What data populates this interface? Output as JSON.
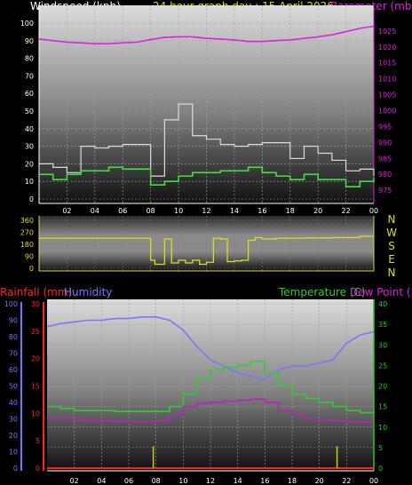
{
  "header": {
    "left_title": "Windspeed (kph)",
    "center_title": "24 hour graph day : 15 April 2026",
    "right_title": "Barometer (mb)"
  },
  "colors": {
    "background": "#000000",
    "wind_speed": "#44dd44",
    "wind_gust": "#dddddd",
    "barometer": "#dd22dd",
    "wind_dir": "#dddd22",
    "compass": "#dddd22",
    "rainfall": "#ff2222",
    "humidity": "#7777ff",
    "temperature": "#33cc33",
    "dew_point": "#bb22bb",
    "rain_bar": "#cccc00",
    "title_yellow": "#dddd00",
    "white_axis": "#ffffff",
    "green_axis": "#22cc22"
  },
  "x_axis": {
    "ticks": [
      "02",
      "04",
      "06",
      "08",
      "10",
      "12",
      "14",
      "16",
      "18",
      "20",
      "22",
      "00"
    ]
  },
  "compass_labels": [
    "N",
    "W",
    "S",
    "E",
    "N"
  ],
  "chart_data": [
    {
      "type": "line",
      "name": "wind-barometer",
      "title": "24 hour graph day : 15 April 2026",
      "ylabel": "Windspeed (kph)",
      "y2label": "Barometer (mb)",
      "ylim": [
        0,
        100
      ],
      "y2lim": [
        975,
        1030
      ],
      "yticks": [
        "0",
        "10",
        "20",
        "30",
        "40",
        "50",
        "60",
        "70",
        "80",
        "90",
        "100"
      ],
      "y2ticks": [
        "975",
        "980",
        "985",
        "990",
        "995",
        "1000",
        "1005",
        "1010",
        "1015",
        "1020",
        "1025"
      ],
      "x": [
        0,
        1,
        2,
        3,
        4,
        5,
        6,
        7,
        8,
        9,
        10,
        11,
        12,
        13,
        14,
        15,
        16,
        17,
        18,
        19,
        20,
        21,
        22,
        23,
        24
      ],
      "series": [
        {
          "key": "gust",
          "values": [
            20,
            18,
            15,
            30,
            29,
            30,
            31,
            31,
            13,
            45,
            54,
            36,
            34,
            31,
            30,
            31,
            32,
            32,
            23,
            30,
            26,
            22,
            16,
            17,
            13
          ]
        },
        {
          "key": "speed",
          "values": [
            14,
            11,
            14,
            16,
            16,
            18,
            17,
            17,
            8,
            10,
            13,
            15,
            15,
            16,
            16,
            18,
            15,
            13,
            11,
            14,
            11,
            11,
            7,
            10,
            12
          ]
        },
        {
          "key": "barometer",
          "values": [
            1022.5,
            1022,
            1021.5,
            1021.3,
            1021,
            1021,
            1021.3,
            1021.5,
            1022.3,
            1023,
            1023.2,
            1023.2,
            1022.7,
            1022.5,
            1022.2,
            1021.7,
            1021.7,
            1022,
            1022.2,
            1022.7,
            1023.2,
            1023.8,
            1024.8,
            1025.8,
            1026.5
          ]
        }
      ]
    },
    {
      "type": "line",
      "name": "wind-direction",
      "ylim": [
        0,
        360
      ],
      "yticks": [
        "0",
        "90",
        "180",
        "270",
        "360"
      ],
      "x": [
        0,
        1,
        2,
        3,
        4,
        5,
        6,
        7,
        7.9,
        8,
        8.3,
        9,
        9.5,
        10,
        10.5,
        11,
        11.5,
        12,
        12.5,
        13,
        13.5,
        14,
        14.5,
        15,
        15.5,
        16,
        17,
        18,
        19,
        20,
        21,
        22,
        23,
        24
      ],
      "values": [
        225,
        225,
        225,
        225,
        225,
        225,
        225,
        225,
        225,
        60,
        30,
        220,
        40,
        60,
        40,
        60,
        30,
        45,
        225,
        220,
        50,
        55,
        60,
        210,
        230,
        220,
        225,
        225,
        228,
        228,
        230,
        230,
        240,
        240
      ]
    },
    {
      "type": "line",
      "name": "rain-humidity-temp",
      "left_label_1": "Rainfall (mm)",
      "left_label_2": "Humidity",
      "right_label_1": "Temperature (C)",
      "right_label_2": "Dew Point (°",
      "humidity_ylim": [
        0,
        100
      ],
      "humidity_ticks": [
        "0",
        "10",
        "20",
        "30",
        "40",
        "50",
        "60",
        "70",
        "80",
        "90",
        "100"
      ],
      "rain_ylim": [
        0,
        30
      ],
      "rain_ticks": [
        "0",
        "5",
        "10",
        "15",
        "20",
        "25",
        "30"
      ],
      "temp_ylim": [
        0,
        40
      ],
      "temp_ticks": [
        "0",
        "5",
        "10",
        "15",
        "20",
        "25",
        "30",
        "35",
        "40"
      ],
      "x": [
        0,
        1,
        2,
        3,
        4,
        5,
        6,
        7,
        8,
        9,
        10,
        11,
        12,
        13,
        14,
        15,
        16,
        17,
        18,
        19,
        20,
        21,
        22,
        23,
        24
      ],
      "series": [
        {
          "key": "humidity",
          "values": [
            86,
            88,
            89,
            90,
            90,
            91,
            91,
            92,
            92,
            90,
            84,
            74,
            66,
            62,
            58,
            56,
            54,
            60,
            62,
            62,
            64,
            66,
            76,
            81,
            83
          ]
        },
        {
          "key": "temperature",
          "values": [
            15,
            14.5,
            14,
            14,
            14,
            13.8,
            13.8,
            13.8,
            13.8,
            15,
            18,
            22,
            24,
            24.5,
            25,
            26,
            23,
            20,
            18,
            17,
            16,
            15,
            14,
            13.5,
            13.5
          ]
        },
        {
          "key": "dew_point",
          "values": [
            12,
            12,
            11.8,
            11.6,
            11.5,
            11.4,
            11.3,
            11.3,
            11.5,
            13,
            15,
            15.8,
            16,
            16.3,
            16.5,
            16.8,
            16,
            14,
            13,
            12,
            11.6,
            11.5,
            11.3,
            11.2,
            11.2
          ]
        },
        {
          "key": "rainfall",
          "values": [
            0,
            0,
            0,
            0,
            0,
            0,
            0,
            0,
            0,
            0,
            0,
            0,
            0,
            0,
            0,
            0,
            0,
            0,
            0,
            0,
            0,
            0,
            0,
            0,
            0
          ]
        }
      ],
      "rain_bars": [
        {
          "x": 7.8,
          "value": 4
        },
        {
          "x": 21.3,
          "value": 4
        }
      ]
    }
  ]
}
